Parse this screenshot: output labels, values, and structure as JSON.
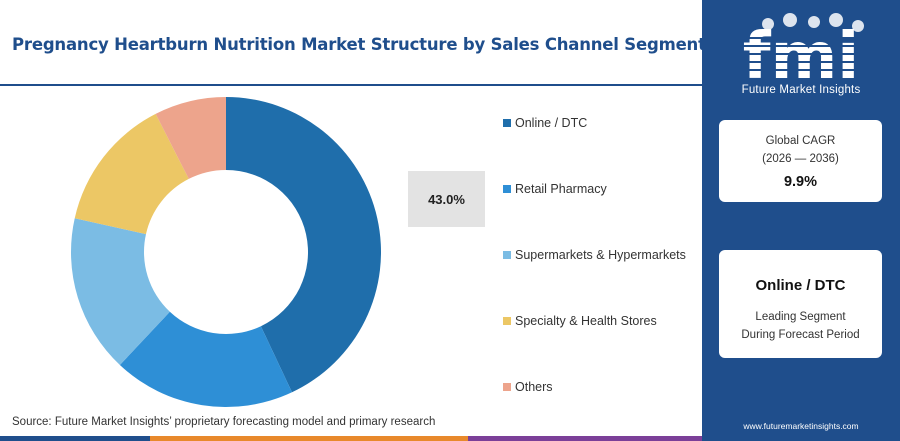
{
  "title": "Pregnancy Heartburn Nutrition Market Structure by Sales Channel Segment",
  "source": "Source: Future Market Insights’ proprietary forecasting model and primary research",
  "highlight_value": "43.0%",
  "chart_data": {
    "type": "pie",
    "variant": "donut",
    "categories": [
      "Online / DTC",
      "Retail Pharmacy",
      "Supermarkets & Hypermarkets",
      "Specialty & Health Stores",
      "Others"
    ],
    "values": [
      43.0,
      19.0,
      16.5,
      14.0,
      7.5
    ],
    "colors": [
      "#1f6eab",
      "#2e8fd6",
      "#7bbce4",
      "#ecc765",
      "#eda48c"
    ],
    "legend_position": "right"
  },
  "sidebar": {
    "logo_letters": "fmi",
    "logo_text": "Future Market Insights",
    "cagr_label_1": "Global CAGR",
    "cagr_label_2": "(2026 — 2036)",
    "cagr_value": "9.9%",
    "leading_segment": "Online / DTC",
    "leading_label_1": "Leading Segment",
    "leading_label_2": "During Forecast Period",
    "website": "www.futuremarketinsights.com"
  },
  "colors": {
    "brand_blue": "#1f4e8c",
    "bar_orange": "#e8892b",
    "bar_purple": "#7b3f98"
  }
}
